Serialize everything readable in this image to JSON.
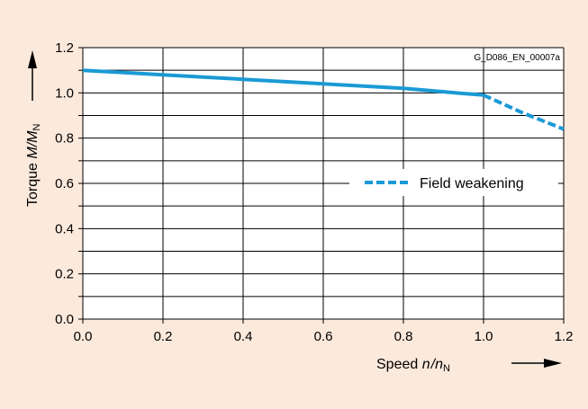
{
  "chart_data": {
    "type": "line",
    "image_code": "G_D086_EN_00007a",
    "xlabel": {
      "prefix": "Speed",
      "var_n": "n",
      "var_slash": "/",
      "var_n2": "n",
      "sub": "N"
    },
    "ylabel": {
      "prefix": "Torque",
      "var_m": "M",
      "var_slash": "/",
      "var_m2": "M",
      "sub": "N"
    },
    "xlim": [
      0.0,
      1.2
    ],
    "ylim": [
      0.0,
      1.2
    ],
    "x_ticks": [
      "0.0",
      "0.2",
      "0.4",
      "0.6",
      "0.8",
      "1.0",
      "1.2"
    ],
    "y_ticks": [
      "0.0",
      "0.2",
      "0.4",
      "0.6",
      "0.8",
      "1.0",
      "1.2"
    ],
    "grid": true,
    "legend_position": "center-right",
    "colors": {
      "line": "#1a9ad6",
      "background": "#fbe9dc",
      "grid": "#000000"
    },
    "series": [
      {
        "name": "",
        "style": "solid",
        "x": [
          0.0,
          0.2,
          0.4,
          0.6,
          0.8,
          0.93,
          1.0
        ],
        "y": [
          1.1,
          1.08,
          1.06,
          1.04,
          1.02,
          1.0,
          0.99
        ]
      },
      {
        "name": "Field weakening",
        "style": "dashed",
        "x": [
          1.0,
          1.05,
          1.1,
          1.15,
          1.2
        ],
        "y": [
          0.99,
          0.95,
          0.91,
          0.875,
          0.84
        ]
      }
    ]
  }
}
